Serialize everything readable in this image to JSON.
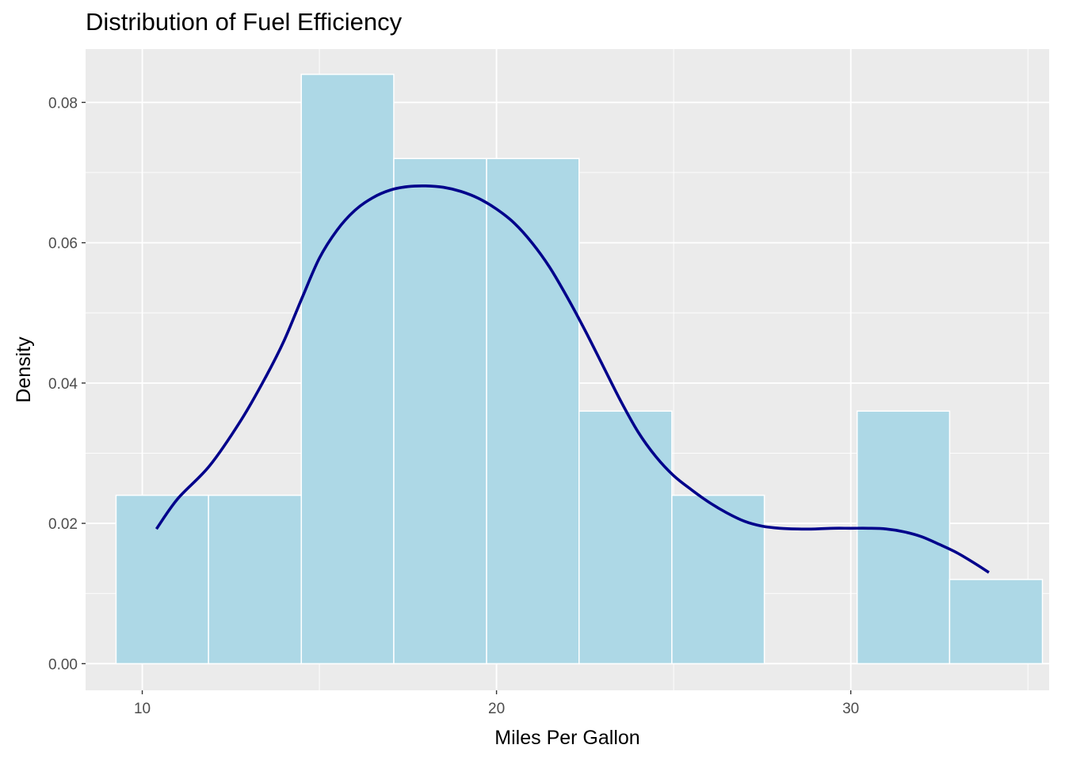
{
  "chart_data": {
    "type": "histogram",
    "title": "Distribution of Fuel Efficiency",
    "xlabel": "Miles Per Gallon",
    "ylabel": "Density",
    "xlim": [
      8.4,
      35.6
    ],
    "ylim": [
      -0.0038,
      0.0876
    ],
    "x_ticks": [
      10,
      20,
      30
    ],
    "x_tick_labels": [
      "10",
      "20",
      "30"
    ],
    "y_ticks": [
      0.0,
      0.02,
      0.04,
      0.06,
      0.08
    ],
    "y_tick_labels": [
      "0.00",
      "0.02",
      "0.04",
      "0.06",
      "0.08"
    ],
    "grid": true,
    "legend": "none",
    "colors": {
      "panel_background": "#ebebeb",
      "grid": "#ffffff",
      "bar_fill": "#add8e6",
      "bar_outline": "#ffffff",
      "density_line": "#00008b"
    },
    "bins": [
      {
        "x_start": 9.26,
        "x_end": 11.87,
        "density": 0.024
      },
      {
        "x_start": 11.87,
        "x_end": 14.49,
        "density": 0.024
      },
      {
        "x_start": 14.49,
        "x_end": 17.1,
        "density": 0.084
      },
      {
        "x_start": 17.1,
        "x_end": 19.72,
        "density": 0.072
      },
      {
        "x_start": 19.72,
        "x_end": 22.33,
        "density": 0.072
      },
      {
        "x_start": 22.33,
        "x_end": 24.95,
        "density": 0.036
      },
      {
        "x_start": 24.95,
        "x_end": 27.56,
        "density": 0.024
      },
      {
        "x_start": 27.56,
        "x_end": 30.18,
        "density": 0.0
      },
      {
        "x_start": 30.18,
        "x_end": 32.79,
        "density": 0.036
      },
      {
        "x_start": 32.79,
        "x_end": 35.41,
        "density": 0.012
      }
    ],
    "density_curve": {
      "x": [
        10.4,
        11.0,
        11.9,
        12.8,
        13.5,
        14.0,
        14.5,
        15.0,
        15.5,
        16.0,
        16.5,
        17.0,
        17.5,
        18.0,
        18.5,
        19.0,
        19.5,
        20.0,
        20.5,
        21.0,
        21.5,
        22.0,
        22.5,
        23.0,
        23.5,
        24.0,
        24.5,
        25.0,
        25.5,
        26.0,
        26.5,
        27.0,
        27.5,
        28.0,
        28.5,
        29.0,
        29.5,
        30.0,
        30.5,
        31.0,
        31.5,
        32.0,
        32.5,
        33.0,
        33.5,
        33.9
      ],
      "y": [
        0.0192,
        0.0235,
        0.0282,
        0.0348,
        0.041,
        0.046,
        0.052,
        0.0578,
        0.0618,
        0.0646,
        0.0664,
        0.0675,
        0.068,
        0.0681,
        0.0679,
        0.0673,
        0.0663,
        0.0648,
        0.0628,
        0.06,
        0.0565,
        0.0522,
        0.0475,
        0.0425,
        0.0375,
        0.033,
        0.0295,
        0.0268,
        0.0248,
        0.023,
        0.0215,
        0.0203,
        0.0196,
        0.0193,
        0.0192,
        0.0192,
        0.0193,
        0.0193,
        0.0193,
        0.0192,
        0.0188,
        0.0181,
        0.017,
        0.0158,
        0.0143,
        0.013
      ]
    }
  }
}
